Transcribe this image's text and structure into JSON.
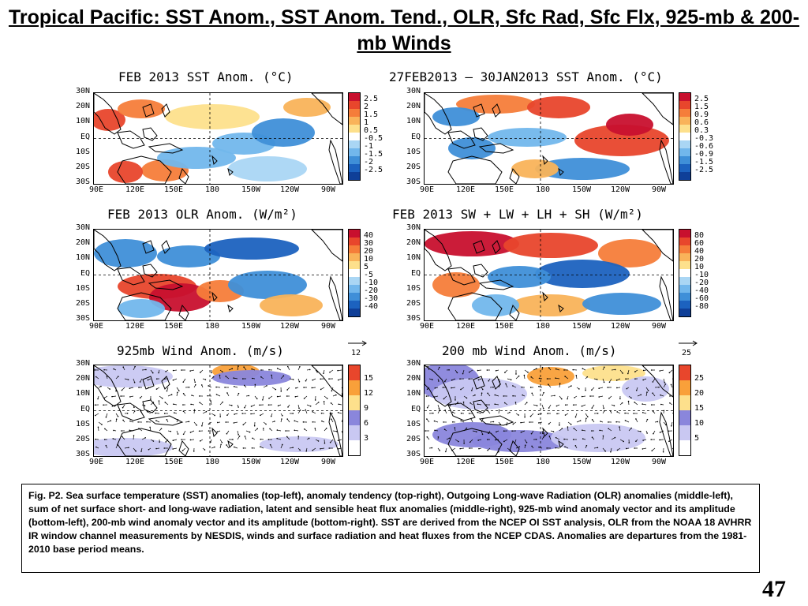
{
  "slide": {
    "title": "Tropical Pacific: SST Anom., SST Anom. Tend., OLR, Sfc Rad, Sfc Flx, 925-mb & 200-mb Winds",
    "page_number": "47",
    "caption": "Fig. P2. Sea surface temperature (SST) anomalies (top-left), anomaly tendency (top-right), Outgoing Long-wave Radiation (OLR) anomalies (middle-left), sum of net surface short- and long-wave radiation, latent and sensible heat flux anomalies (middle-right), 925-mb wind anomaly vector and its amplitude (bottom-left), 200-mb wind anomaly vector and its amplitude  (bottom-right). SST are derived from the NCEP OI SST analysis, OLR from the NOAA 18 AVHRR IR window channel measurements by NESDIS, winds and surface radiation and heat fluxes from the NCEP CDAS. Anomalies are  departures from the 1981-2010 base period means."
  },
  "axes": {
    "lat_labels": [
      "30N",
      "20N",
      "10N",
      "EQ",
      "10S",
      "20S",
      "30S"
    ],
    "lon_labels": [
      "90E",
      "120E",
      "150E",
      "180",
      "150W",
      "120W",
      "90W"
    ]
  },
  "panels": [
    {
      "id": "sst",
      "title": "FEB 2013 SST Anom. (°C)",
      "kind": "diverging",
      "colorbar_labels": [
        "2.5",
        "2",
        "1.5",
        "1",
        "0.5",
        "-0.5",
        "-1",
        "-1.5",
        "-2",
        "-2.5"
      ],
      "colors": [
        "#c8102e",
        "#e8462c",
        "#f57d3a",
        "#f9b35a",
        "#fde08c",
        "#ffffff",
        "#aad6f4",
        "#72b7ec",
        "#3f8fd8",
        "#1c62bf",
        "#0f3f98"
      ]
    },
    {
      "id": "sst-tend",
      "title": "27FEB2013 – 30JAN2013 SST Anom. (°C)",
      "kind": "diverging",
      "colorbar_labels": [
        "2.5",
        "1.5",
        "0.9",
        "0.6",
        "0.3",
        "-0.3",
        "-0.6",
        "-0.9",
        "-1.5",
        "-2.5"
      ],
      "colors": [
        "#c8102e",
        "#e8462c",
        "#f57d3a",
        "#f9b35a",
        "#fde08c",
        "#ffffff",
        "#aad6f4",
        "#72b7ec",
        "#3f8fd8",
        "#1c62bf",
        "#0f3f98"
      ]
    },
    {
      "id": "olr",
      "title": "FEB 2013 OLR Anom. (W/m²)",
      "kind": "diverging",
      "colorbar_labels": [
        "40",
        "30",
        "20",
        "10",
        "5",
        "-5",
        "-10",
        "-20",
        "-30",
        "-40"
      ],
      "colors": [
        "#c8102e",
        "#e8462c",
        "#f57d3a",
        "#f9b35a",
        "#fde08c",
        "#ffffff",
        "#aad6f4",
        "#72b7ec",
        "#3f8fd8",
        "#1c62bf",
        "#0f3f98"
      ]
    },
    {
      "id": "flux",
      "title": "FEB 2013 SW + LW + LH + SH (W/m²)",
      "kind": "diverging",
      "colorbar_labels": [
        "80",
        "60",
        "40",
        "20",
        "10",
        "-10",
        "-20",
        "-40",
        "-60",
        "-80"
      ],
      "colors": [
        "#c8102e",
        "#e8462c",
        "#f57d3a",
        "#f9b35a",
        "#fde08c",
        "#ffffff",
        "#aad6f4",
        "#72b7ec",
        "#3f8fd8",
        "#1c62bf",
        "#0f3f98"
      ]
    },
    {
      "id": "wind925",
      "title": "925mb Wind Anom. (m/s)",
      "kind": "wind",
      "reference_vector": "12",
      "colorbar_labels": [
        "15",
        "12",
        "9",
        "6",
        "3"
      ],
      "colors": [
        "#e8462c",
        "#f9a03a",
        "#fde08c",
        "#8a86dc",
        "#c9c8f2",
        "#ffffff"
      ]
    },
    {
      "id": "wind200",
      "title": "200 mb Wind Anom. (m/s)",
      "kind": "wind",
      "reference_vector": "25",
      "colorbar_labels": [
        "25",
        "20",
        "15",
        "10",
        "5"
      ],
      "colors": [
        "#e8462c",
        "#f9a03a",
        "#fde08c",
        "#8a86dc",
        "#c9c8f2",
        "#ffffff"
      ]
    }
  ]
}
